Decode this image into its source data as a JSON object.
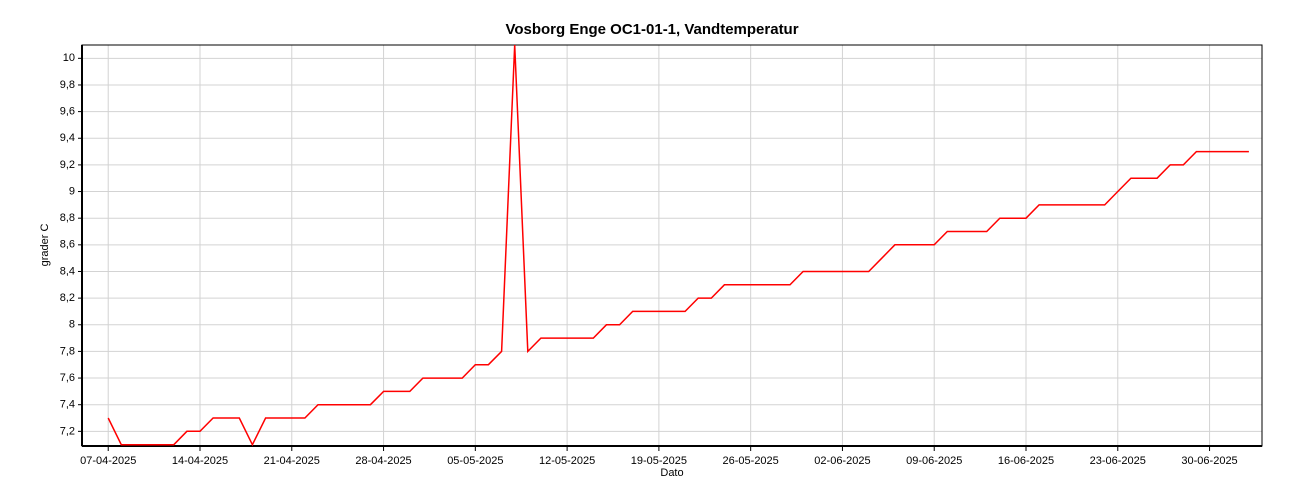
{
  "chart_data": {
    "type": "line",
    "title": "Vosborg Enge OC1-01-1, Vandtemperatur",
    "xlabel": "Dato",
    "ylabel": "grader C",
    "x": [
      "07-04-2025",
      "08-04-2025",
      "09-04-2025",
      "10-04-2025",
      "11-04-2025",
      "12-04-2025",
      "13-04-2025",
      "14-04-2025",
      "15-04-2025",
      "16-04-2025",
      "17-04-2025",
      "18-04-2025",
      "19-04-2025",
      "20-04-2025",
      "21-04-2025",
      "22-04-2025",
      "23-04-2025",
      "24-04-2025",
      "25-04-2025",
      "26-04-2025",
      "27-04-2025",
      "28-04-2025",
      "29-04-2025",
      "30-04-2025",
      "01-05-2025",
      "02-05-2025",
      "03-05-2025",
      "04-05-2025",
      "05-05-2025",
      "06-05-2025",
      "07-05-2025",
      "08-05-2025",
      "09-05-2025",
      "10-05-2025",
      "11-05-2025",
      "12-05-2025",
      "13-05-2025",
      "14-05-2025",
      "15-05-2025",
      "16-05-2025",
      "17-05-2025",
      "18-05-2025",
      "19-05-2025",
      "20-05-2025",
      "21-05-2025",
      "22-05-2025",
      "23-05-2025",
      "24-05-2025",
      "25-05-2025",
      "26-05-2025",
      "27-05-2025",
      "28-05-2025",
      "29-05-2025",
      "30-05-2025",
      "31-05-2025",
      "01-06-2025",
      "02-06-2025",
      "03-06-2025",
      "04-06-2025",
      "05-06-2025",
      "06-06-2025",
      "07-06-2025",
      "08-06-2025",
      "09-06-2025",
      "10-06-2025",
      "11-06-2025",
      "12-06-2025",
      "13-06-2025",
      "14-06-2025",
      "15-06-2025",
      "16-06-2025",
      "17-06-2025",
      "18-06-2025",
      "19-06-2025",
      "20-06-2025",
      "21-06-2025",
      "22-06-2025",
      "23-06-2025",
      "24-06-2025",
      "25-06-2025",
      "26-06-2025",
      "27-06-2025",
      "28-06-2025",
      "29-06-2025",
      "30-06-2025",
      "01-07-2025",
      "02-07-2025",
      "03-07-2025"
    ],
    "series": [
      {
        "color": "#ff0000",
        "values": [
          7.3,
          7.1,
          7.1,
          7.1,
          7.1,
          7.1,
          7.2,
          7.2,
          7.3,
          7.3,
          7.3,
          7.1,
          7.3,
          7.3,
          7.3,
          7.3,
          7.4,
          7.4,
          7.4,
          7.4,
          7.4,
          7.5,
          7.5,
          7.5,
          7.6,
          7.6,
          7.6,
          7.6,
          7.7,
          7.7,
          7.8,
          10.1,
          7.8,
          7.9,
          7.9,
          7.9,
          7.9,
          7.9,
          8.0,
          8.0,
          8.1,
          8.1,
          8.1,
          8.1,
          8.1,
          8.2,
          8.2,
          8.3,
          8.3,
          8.3,
          8.3,
          8.3,
          8.3,
          8.4,
          8.4,
          8.4,
          8.4,
          8.4,
          8.4,
          8.5,
          8.6,
          8.6,
          8.6,
          8.6,
          8.7,
          8.7,
          8.7,
          8.7,
          8.8,
          8.8,
          8.8,
          8.9,
          8.9,
          8.9,
          8.9,
          8.9,
          8.9,
          9.0,
          9.1,
          9.1,
          9.1,
          9.2,
          9.2,
          9.3,
          9.3,
          9.3,
          9.3,
          9.3
        ]
      }
    ],
    "xlim": [
      "05-04-2025",
      "04-07-2025"
    ],
    "xticks": [
      "07-04-2025",
      "14-04-2025",
      "21-04-2025",
      "28-04-2025",
      "05-05-2025",
      "12-05-2025",
      "19-05-2025",
      "26-05-2025",
      "02-06-2025",
      "09-06-2025",
      "16-06-2025",
      "23-06-2025",
      "30-06-2025"
    ],
    "ylim": [
      7.09,
      10.1
    ],
    "yticks": [
      {
        "value": 7.2,
        "label": "7,2"
      },
      {
        "value": 7.4,
        "label": "7,4"
      },
      {
        "value": 7.6,
        "label": "7,6"
      },
      {
        "value": 7.8,
        "label": "7,8"
      },
      8,
      {
        "value": 8.2,
        "label": "8,2"
      },
      {
        "value": 8.4,
        "label": "8,4"
      },
      {
        "value": 8.6,
        "label": "8,6"
      },
      {
        "value": 8.8,
        "label": "8,8"
      },
      9,
      {
        "value": 9.2,
        "label": "9,2"
      },
      {
        "value": 9.4,
        "label": "9,4"
      },
      {
        "value": 9.6,
        "label": "9,6"
      },
      {
        "value": 9.8,
        "label": "9,8"
      },
      10
    ],
    "grid": true
  }
}
